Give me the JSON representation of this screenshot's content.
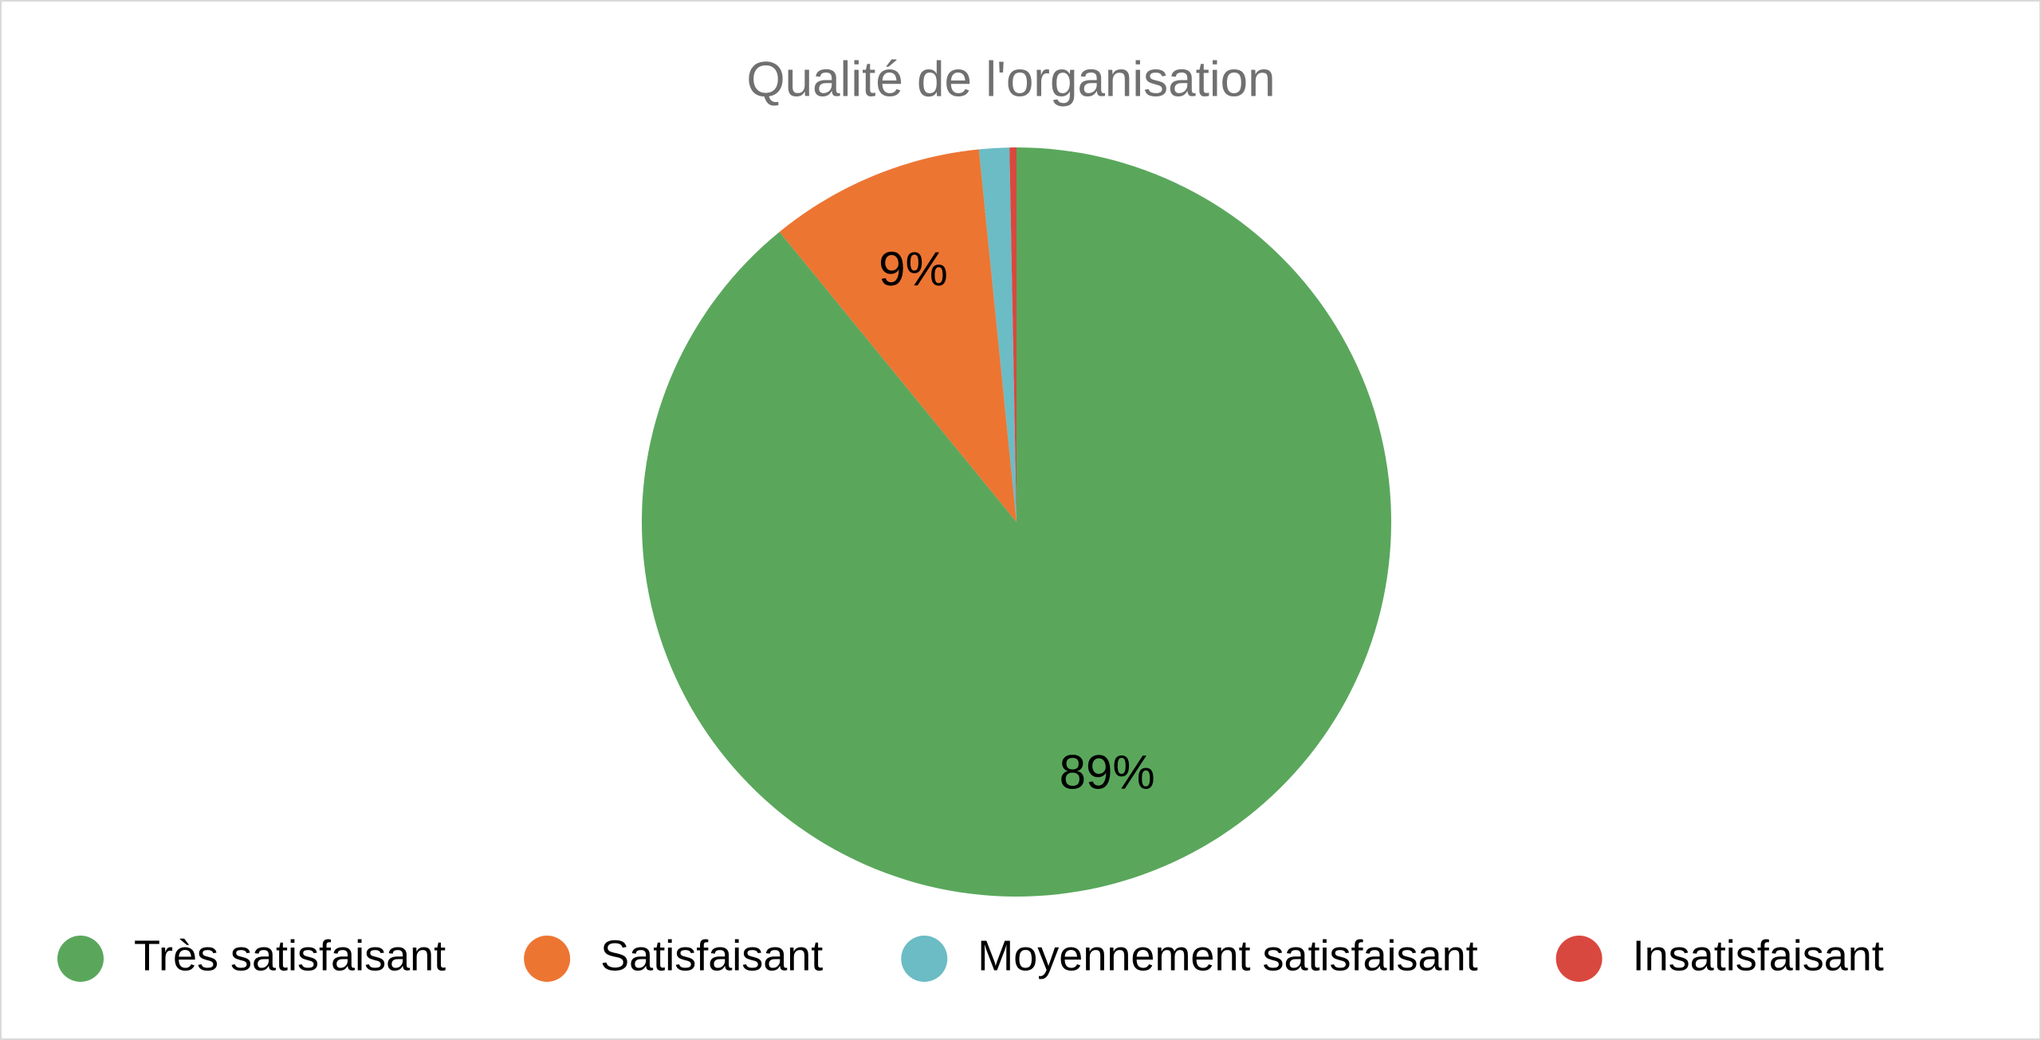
{
  "chart_data": {
    "type": "pie",
    "title": "Qualité de l'organisation",
    "categories": [
      "Très satisfaisant",
      "Satisfaisant",
      "Moyennement satisfaisant",
      "Insatisfaisant"
    ],
    "values": [
      89.1,
      9.3,
      1.3,
      0.3
    ],
    "value_labels": [
      "89%",
      "9%",
      null,
      null
    ],
    "colors": [
      "#5aa75c",
      "#ed7532",
      "#6bbcc5",
      "#d9483f"
    ],
    "legend": "bottom"
  }
}
